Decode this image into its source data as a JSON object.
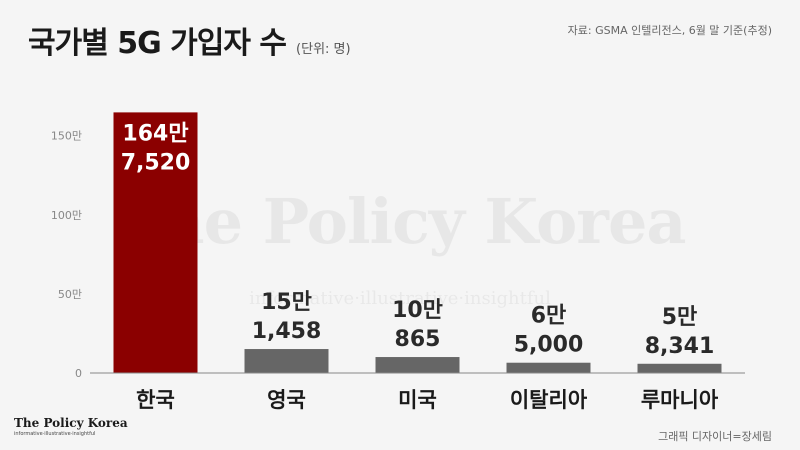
{
  "header": {
    "title": "국가별 5G 가입자 수",
    "unit": "(단위: 명)",
    "source": "자료: GSMA 인텔리전스, 6월 말 기준(추정)"
  },
  "watermark": {
    "text": "The Policy Korea",
    "tagline": "informative·illustrative·insightful"
  },
  "logo": {
    "name": "The Policy Korea",
    "tagline": "informative·illustrative·insightful"
  },
  "footer": {
    "credit": "그래픽 디자이너=장세림"
  },
  "colors": {
    "highlight": "#8b0000",
    "bar": "#666666",
    "axis": "#888888",
    "label_on_highlight": "#ffffff",
    "label": "#2a2a2a"
  },
  "chart_data": {
    "type": "bar",
    "categories": [
      "한국",
      "영국",
      "미국",
      "이탈리아",
      "루마니아"
    ],
    "values": [
      1647520,
      151458,
      100865,
      65000,
      58341
    ],
    "data_labels": [
      [
        "164만",
        "7,520"
      ],
      [
        "15만",
        "1,458"
      ],
      [
        "10만",
        "865"
      ],
      [
        "6만",
        "5,000"
      ],
      [
        "5만",
        "8,341"
      ]
    ],
    "highlight_index": 0,
    "ylim": [
      0,
      1650000
    ],
    "yticks": [
      0,
      500000,
      1000000,
      1500000
    ],
    "ytick_labels": [
      "0",
      "50만",
      "100만",
      "150만"
    ],
    "grid": false,
    "title": "국가별 5G 가입자 수",
    "xlabel": "",
    "ylabel": ""
  }
}
